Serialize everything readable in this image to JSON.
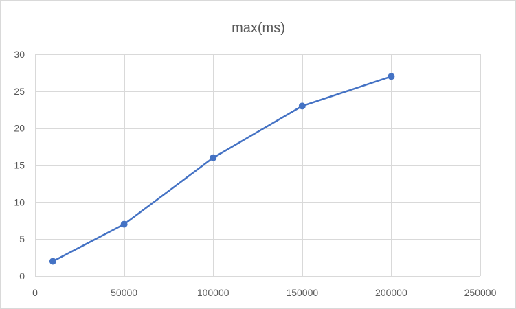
{
  "chart_data": {
    "type": "scatter",
    "title": "max(ms)",
    "xlabel": "",
    "ylabel": "",
    "xlim": [
      0,
      250000
    ],
    "ylim": [
      0,
      30
    ],
    "x_ticks": [
      0,
      50000,
      100000,
      150000,
      200000,
      250000
    ],
    "y_ticks": [
      0,
      5,
      10,
      15,
      20,
      25,
      30
    ],
    "grid": true,
    "legend": "none",
    "series": [
      {
        "name": "max(ms)",
        "color": "#4472c4",
        "lines": true,
        "markers": true,
        "x": [
          10000,
          50000,
          100000,
          150000,
          200000
        ],
        "y": [
          2,
          7,
          16,
          23,
          27
        ]
      }
    ]
  }
}
